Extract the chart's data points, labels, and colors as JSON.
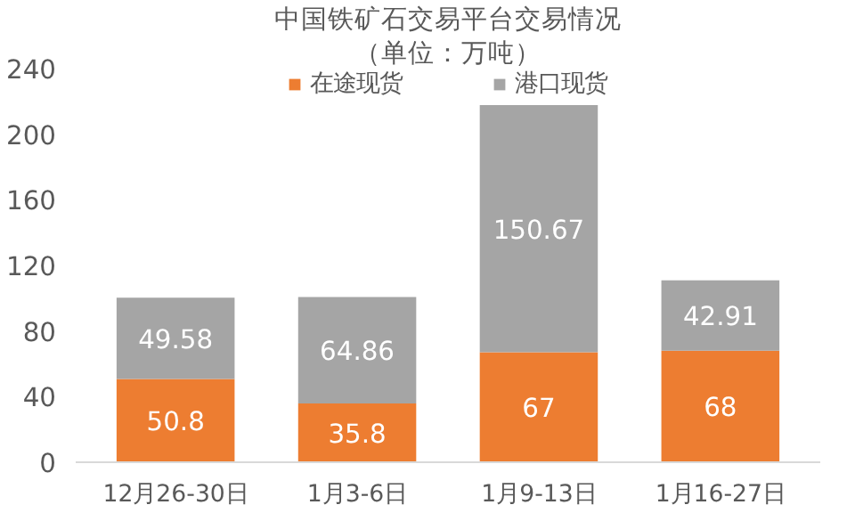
{
  "chart_data": {
    "type": "bar",
    "title": "中国铁矿石交易平台交易情况",
    "subtitle": "（单位：万吨）",
    "categories": [
      "12月26-30日",
      "1月3-6日",
      "1月9-13日",
      "1月16-27日"
    ],
    "stacked": true,
    "series": [
      {
        "name": "在途现货",
        "color": "#ed7d31",
        "values": [
          50.8,
          35.8,
          67,
          68
        ]
      },
      {
        "name": "港口现货",
        "color": "#a5a5a5",
        "values": [
          49.58,
          64.86,
          150.67,
          42.91
        ]
      }
    ],
    "ylim": [
      0,
      240
    ],
    "yticks": [
      0,
      40,
      80,
      120,
      160,
      200,
      240
    ],
    "grid": false,
    "legend": "top",
    "data_labels": true
  }
}
